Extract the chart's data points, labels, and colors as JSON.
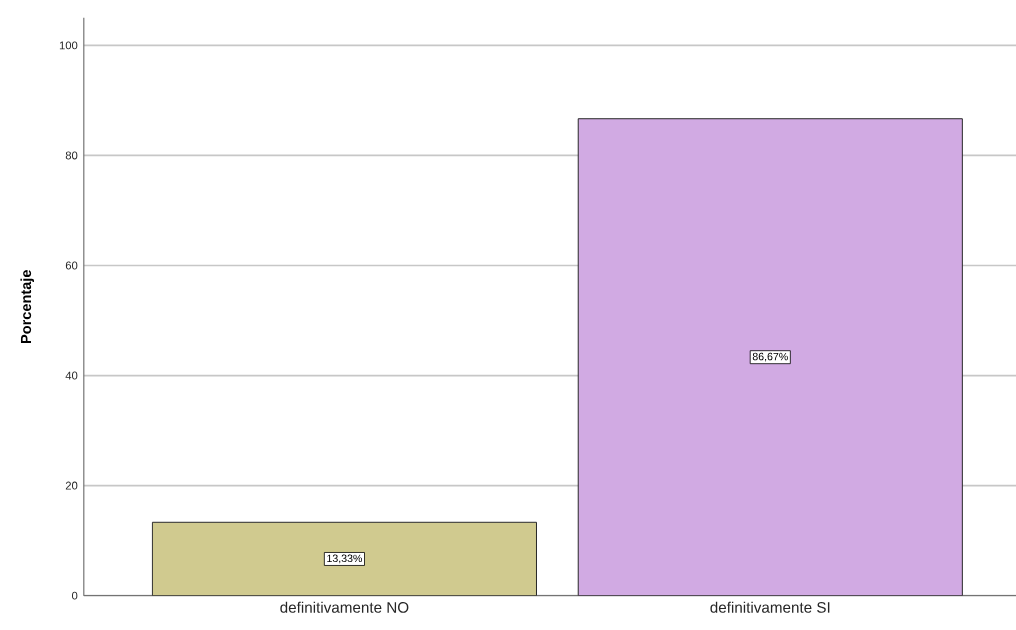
{
  "chart_data": {
    "type": "bar",
    "ylabel": "Porcentaje",
    "categories": [
      "definitivamente NO",
      "definitivamente SI"
    ],
    "values": [
      13.33,
      86.67
    ],
    "colors": [
      "#d0ca8f",
      "#d1aae3"
    ],
    "value_labels": [
      "13,33%",
      "86,67%"
    ],
    "ylim": [
      0,
      105
    ],
    "yticks": [
      0,
      20,
      40,
      60,
      80,
      100
    ],
    "grid": "y"
  }
}
